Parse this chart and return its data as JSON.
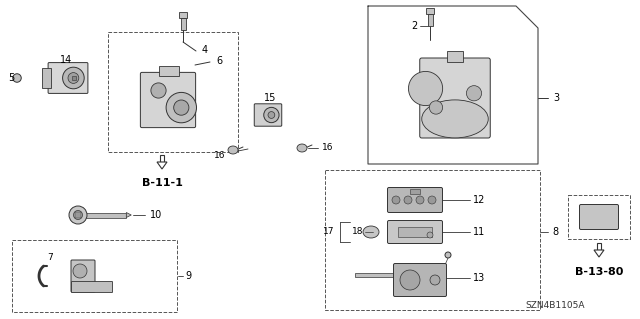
{
  "bg_color": "#ffffff",
  "diagram_code": "SZN4B1105A",
  "ref_b111": "B-11-1",
  "ref_b1380": "B-13-80",
  "line_color": "#333333",
  "gray_fill": "#cccccc",
  "dark_gray": "#888888",
  "mid_gray": "#aaaaaa"
}
